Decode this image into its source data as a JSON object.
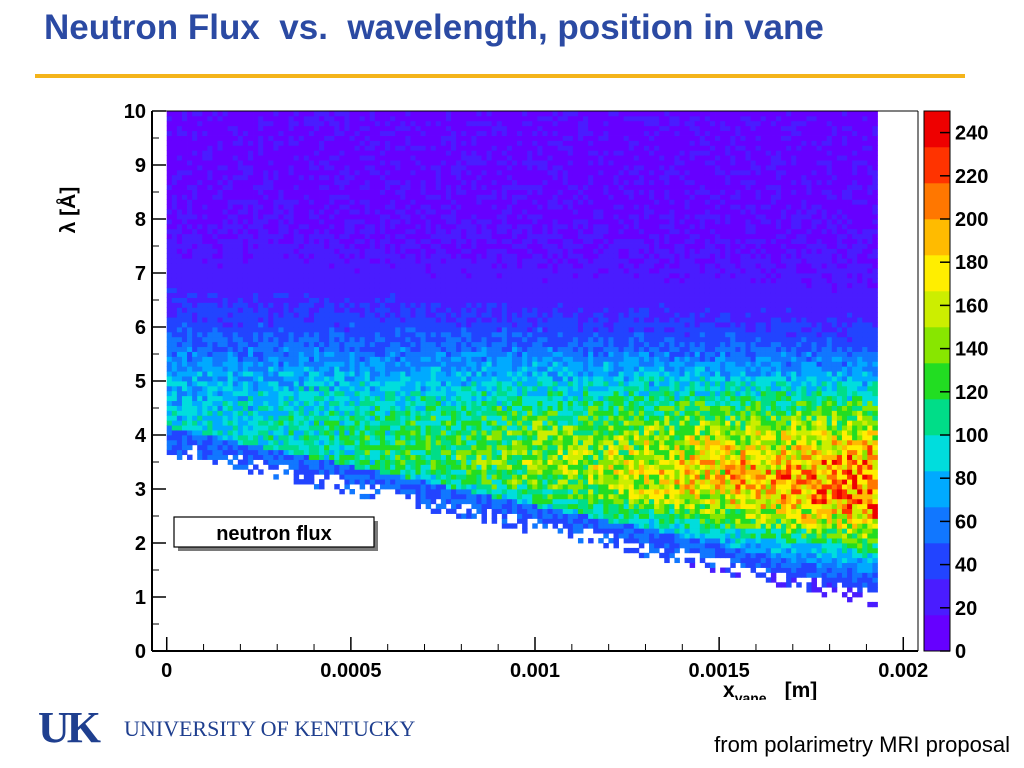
{
  "slide": {
    "title": "Neutron Flux  vs.  wavelength, position in vane",
    "footer_note": "from polarimetry MRI proposal",
    "logo": {
      "mark": "UK",
      "name": "UNIVERSITY OF KENTUCKY",
      "color": "#1f3f8f"
    },
    "title_color": "#2b4aa3",
    "rule_color": "#f4b41a"
  },
  "chart_data": {
    "type": "heatmap",
    "title": "",
    "legend_box": "neutron flux",
    "xlabel": "x_vane  [m]",
    "xlabel_main": "x",
    "xlabel_sub": "vane",
    "xlabel_unit": "[m]",
    "ylabel": "λ  [Å]",
    "xlim": [
      -4e-05,
      0.00204
    ],
    "ylim": [
      0,
      10
    ],
    "x_ticks": [
      "0",
      "0.0005",
      "0.001",
      "0.0015",
      "0.002"
    ],
    "x_tick_values": [
      0,
      0.0005,
      0.001,
      0.0015,
      0.002
    ],
    "y_ticks": [
      "0",
      "1",
      "2",
      "3",
      "4",
      "5",
      "6",
      "7",
      "8",
      "9",
      "10"
    ],
    "y_tick_values": [
      0,
      1,
      2,
      3,
      4,
      5,
      6,
      7,
      8,
      9,
      10
    ],
    "z_range": [
      0,
      250
    ],
    "colorbar_ticks": [
      "0",
      "20",
      "40",
      "60",
      "80",
      "100",
      "120",
      "140",
      "160",
      "180",
      "200",
      "220",
      "240"
    ],
    "colorbar_tick_values": [
      0,
      20,
      40,
      60,
      80,
      100,
      120,
      140,
      160,
      180,
      200,
      220,
      240
    ],
    "colorbar_colors": [
      "#6600ff",
      "#4a1cff",
      "#2244ff",
      "#1177ff",
      "#00aaff",
      "#00dddd",
      "#00dd88",
      "#22dd22",
      "#88e600",
      "#ccee00",
      "#ffee00",
      "#ffbb00",
      "#ff7700",
      "#ff3300",
      "#ee0000"
    ],
    "occupied_region": {
      "x_range": [
        0.0,
        0.00193
      ],
      "lambda_max": 10,
      "lambda_min_at_x0": 3.75,
      "lambda_min_at_xmax": 0.95
    },
    "flux_profile": {
      "peak": {
        "x": 0.00188,
        "lambda": 3.8,
        "value": 230
      },
      "band_lambda": [
        2.5,
        5.5
      ],
      "description_level_low_lambda_edge": 40,
      "level_at_lambda_10": 15
    }
  }
}
